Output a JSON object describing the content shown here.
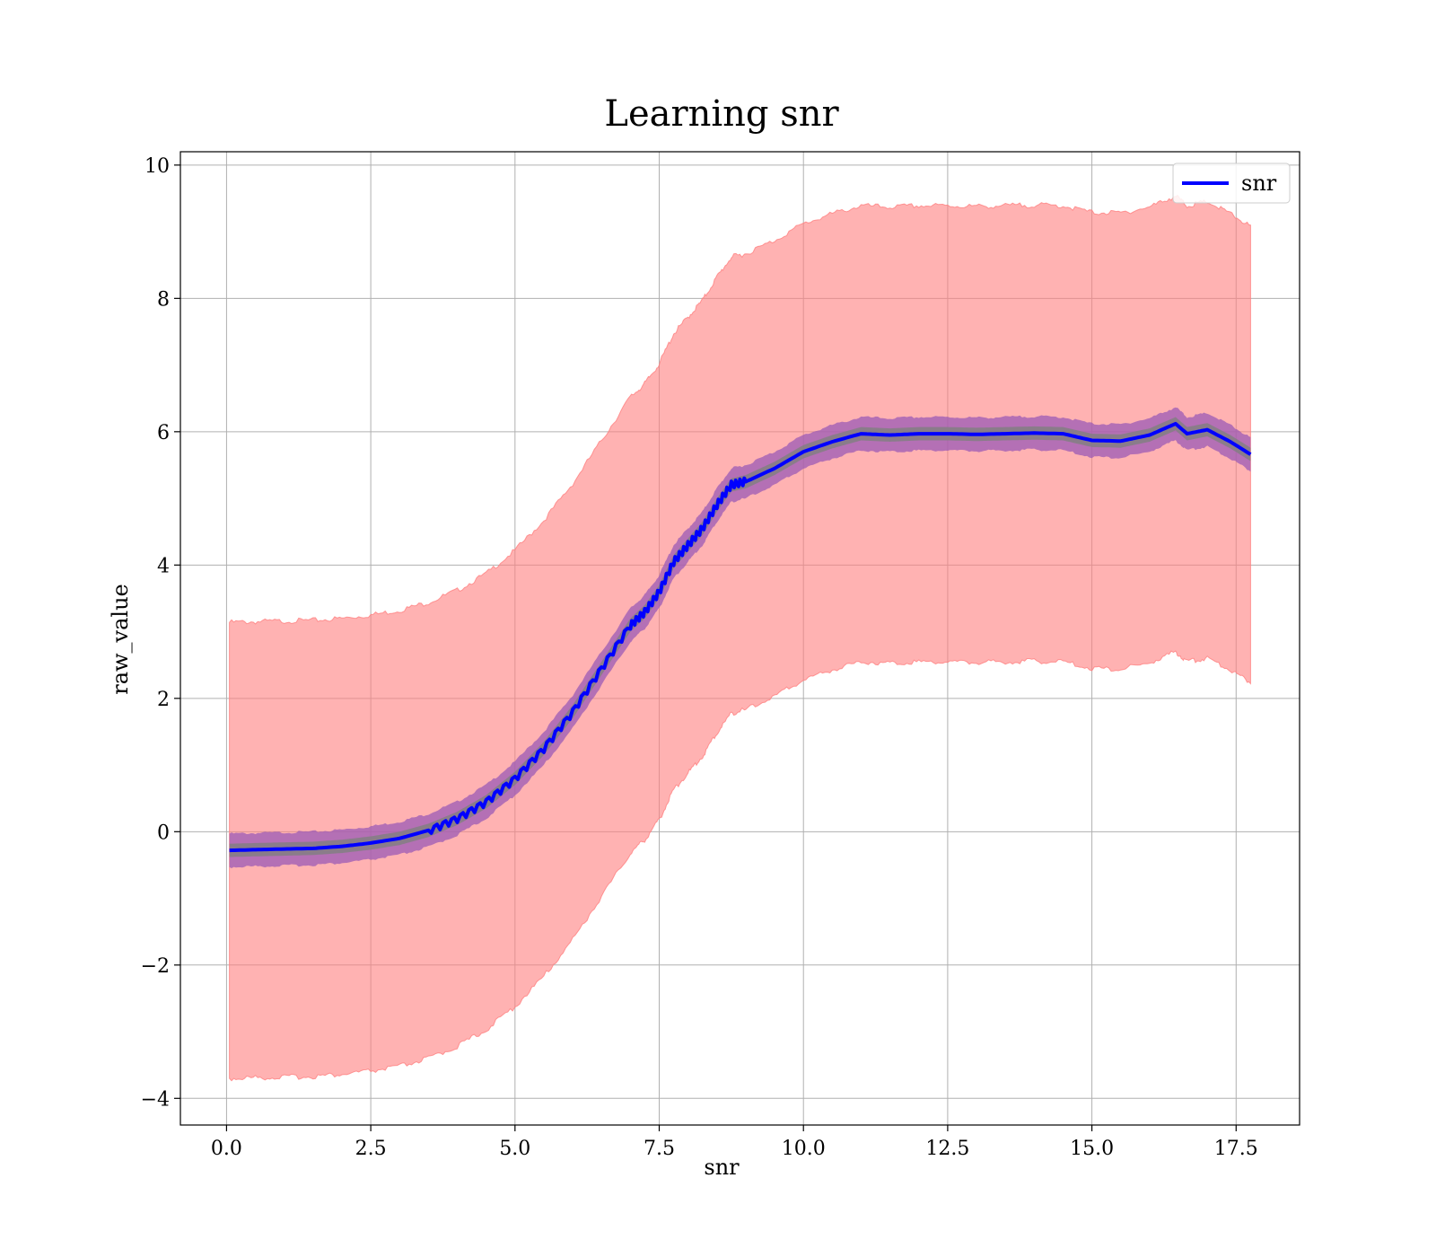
{
  "chart_data": {
    "type": "line",
    "title": "Learning snr",
    "xlabel": "snr",
    "ylabel": "raw_value",
    "xlim": [
      -0.8,
      18.6
    ],
    "ylim": [
      -4.4,
      10.2
    ],
    "x_ticks": [
      0.0,
      2.5,
      5.0,
      7.5,
      10.0,
      12.5,
      15.0,
      17.5
    ],
    "x_tick_labels": [
      "0.0",
      "2.5",
      "5.0",
      "7.5",
      "10.0",
      "12.5",
      "15.0",
      "17.5"
    ],
    "y_ticks": [
      -4,
      -2,
      0,
      2,
      4,
      6,
      8,
      10
    ],
    "y_tick_labels": [
      "−4",
      "−2",
      "0",
      "2",
      "4",
      "6",
      "8",
      "10"
    ],
    "grid": true,
    "legend_position": "top-right",
    "colors": {
      "line": "#0000ff",
      "inner_band": "#9b59b6",
      "core_band": "#808080",
      "outer_band": "#ff7f7f",
      "grid": "#b0b0b0"
    },
    "series": [
      {
        "name": "snr",
        "x": [
          0.05,
          0.5,
          1.0,
          1.5,
          2.0,
          2.5,
          3.0,
          3.5,
          4.0,
          4.5,
          5.0,
          5.5,
          6.0,
          6.5,
          7.0,
          7.25,
          7.5,
          7.75,
          8.0,
          8.25,
          8.5,
          8.75,
          9.0,
          9.5,
          10.0,
          10.5,
          11.0,
          11.5,
          12.0,
          12.5,
          13.0,
          13.5,
          14.0,
          14.5,
          15.0,
          15.5,
          16.0,
          16.45,
          16.65,
          17.0,
          17.4,
          17.75
        ],
        "y": [
          -0.28,
          -0.27,
          -0.26,
          -0.25,
          -0.22,
          -0.17,
          -0.1,
          0.02,
          0.2,
          0.45,
          0.8,
          1.25,
          1.8,
          2.45,
          3.1,
          3.3,
          3.6,
          4.05,
          4.3,
          4.55,
          4.9,
          5.2,
          5.25,
          5.45,
          5.7,
          5.85,
          5.97,
          5.95,
          5.97,
          5.97,
          5.96,
          5.97,
          5.98,
          5.97,
          5.87,
          5.86,
          5.95,
          6.12,
          5.97,
          6.03,
          5.85,
          5.66
        ],
        "inner_band_halfwidth": 0.25,
        "core_band_halfwidth": 0.1,
        "outer_band_halfwidth": 3.42
      }
    ]
  }
}
